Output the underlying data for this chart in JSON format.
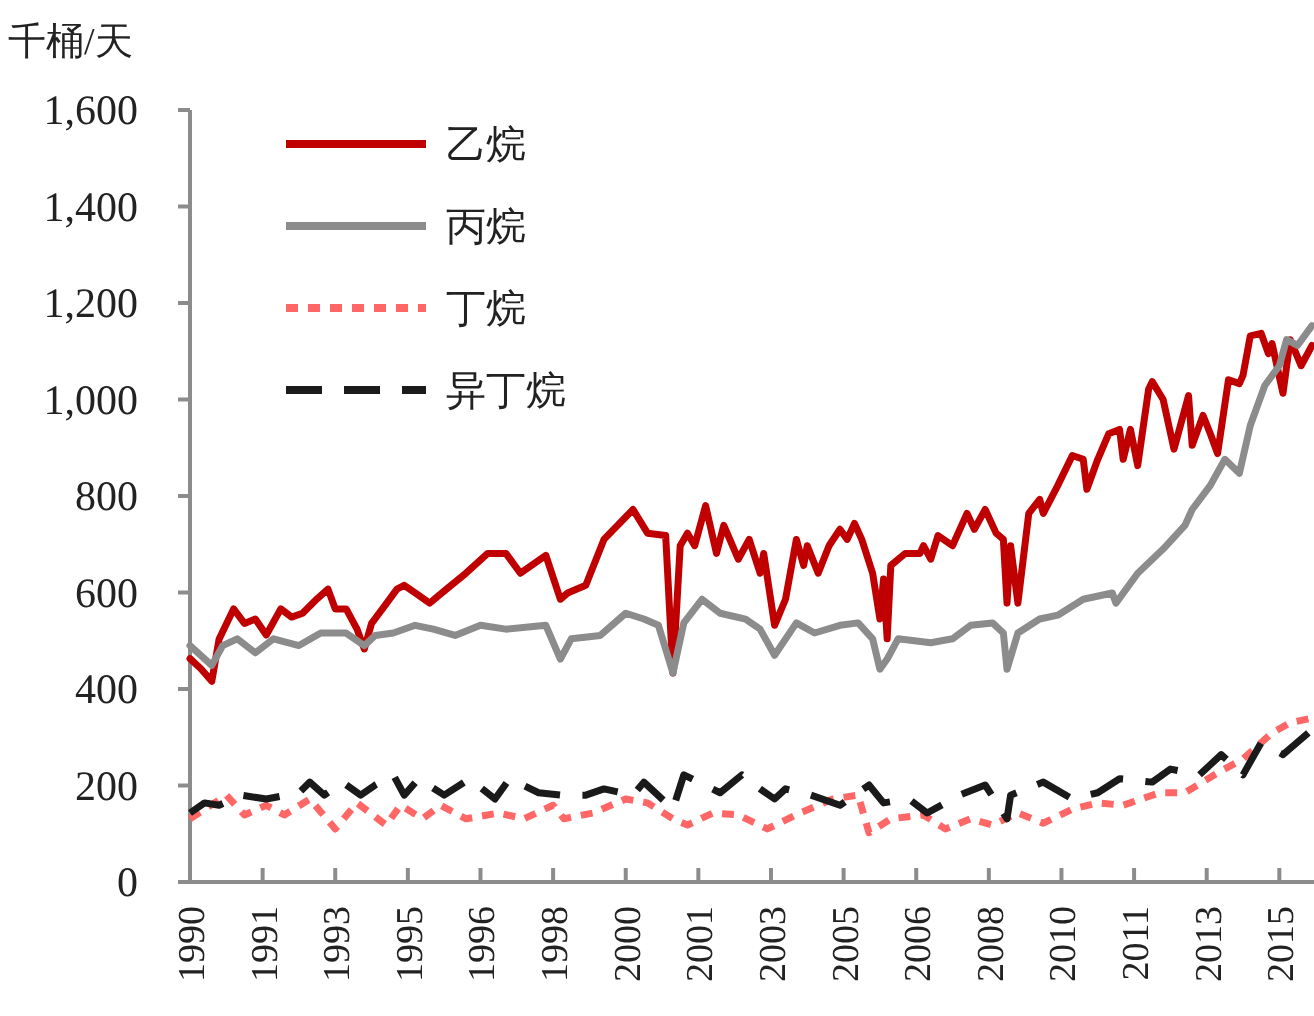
{
  "chart_data": {
    "type": "line",
    "ylabel": "千桶/天",
    "xlim": [
      "1990-01",
      "2015-10"
    ],
    "ylim": [
      0,
      1600
    ],
    "xticks": [
      {
        "value": "1990-01",
        "label": "1990"
      },
      {
        "value": "1991-09",
        "label": "1991"
      },
      {
        "value": "1993-05",
        "label": "1993"
      },
      {
        "value": "1995-01",
        "label": "1995"
      },
      {
        "value": "1996-09",
        "label": "1996"
      },
      {
        "value": "1998-05",
        "label": "1998"
      },
      {
        "value": "2000-01",
        "label": "2000"
      },
      {
        "value": "2001-09",
        "label": "2001"
      },
      {
        "value": "2003-05",
        "label": "2003"
      },
      {
        "value": "2005-01",
        "label": "2005"
      },
      {
        "value": "2006-09",
        "label": "2006"
      },
      {
        "value": "2008-05",
        "label": "2008"
      },
      {
        "value": "2010-01",
        "label": "2010"
      },
      {
        "value": "2011-09",
        "label": "2011"
      },
      {
        "value": "2013-05",
        "label": "2013"
      },
      {
        "value": "2015-01",
        "label": "2015"
      }
    ],
    "yticks": [
      {
        "value": 0,
        "label": "0"
      },
      {
        "value": 200,
        "label": "200"
      },
      {
        "value": 400,
        "label": "400"
      },
      {
        "value": 600,
        "label": "600"
      },
      {
        "value": 800,
        "label": "800"
      },
      {
        "value": 1000,
        "label": "1,000"
      },
      {
        "value": 1200,
        "label": "1,200"
      },
      {
        "value": 1400,
        "label": "1,400"
      },
      {
        "value": 1600,
        "label": "1,600"
      }
    ],
    "grid": false,
    "legend": "top left",
    "series": [
      {
        "name": "乙烷",
        "color": "#c00000",
        "line_style": "solid",
        "x": [
          "1990-01",
          "1990-04",
          "1990-07",
          "1990-09",
          "1991-01",
          "1991-04",
          "1991-07",
          "1991-10",
          "1992-02",
          "1992-05",
          "1992-08",
          "1992-12",
          "1993-03",
          "1993-05",
          "1993-08",
          "1993-11",
          "1994-01",
          "1994-03",
          "1994-06",
          "1994-10",
          "1994-12",
          "1995-04",
          "1995-07",
          "1995-11",
          "1996-05",
          "1996-11",
          "1997-04",
          "1997-08",
          "1998-03",
          "1998-07",
          "1998-09",
          "1999-02",
          "1999-07",
          "2000-03",
          "2000-07",
          "2000-12",
          "2001-02",
          "2001-04",
          "2001-06",
          "2001-08",
          "2001-11",
          "2002-02",
          "2002-04",
          "2002-08",
          "2002-11",
          "2003-02",
          "2003-03",
          "2003-06",
          "2003-09",
          "2003-12",
          "2004-02",
          "2004-03",
          "2004-06",
          "2004-09",
          "2004-12",
          "2005-02",
          "2005-04",
          "2005-06",
          "2005-09",
          "2005-11",
          "2005-12",
          "2006-01",
          "2006-02",
          "2006-06",
          "2006-10",
          "2006-11",
          "2007-01",
          "2007-03",
          "2007-07",
          "2007-11",
          "2008-01",
          "2008-04",
          "2008-07",
          "2008-09",
          "2008-10",
          "2008-11",
          "2009-01",
          "2009-04",
          "2009-07",
          "2009-08",
          "2009-12",
          "2010-04",
          "2010-07",
          "2010-08",
          "2010-11",
          "2011-02",
          "2011-05",
          "2011-06",
          "2011-08",
          "2011-10",
          "2012-01",
          "2012-02",
          "2012-05",
          "2012-08",
          "2012-12",
          "2013-01",
          "2013-04",
          "2013-06",
          "2013-08",
          "2013-11",
          "2014-02",
          "2014-03",
          "2014-05",
          "2014-08",
          "2014-10",
          "2014-11",
          "2015-02",
          "2015-04",
          "2015-07",
          "2015-10"
        ],
        "values": [
          463,
          442,
          416,
          503,
          566,
          536,
          545,
          512,
          566,
          549,
          557,
          587,
          607,
          566,
          566,
          524,
          483,
          536,
          566,
          607,
          615,
          594,
          578,
          603,
          640,
          681,
          681,
          640,
          677,
          586,
          599,
          615,
          710,
          772,
          723,
          718,
          433,
          697,
          723,
          697,
          780,
          681,
          739,
          669,
          710,
          640,
          681,
          532,
          586,
          710,
          656,
          697,
          640,
          697,
          731,
          710,
          743,
          710,
          640,
          545,
          628,
          504,
          656,
          681,
          681,
          697,
          669,
          718,
          697,
          764,
          731,
          772,
          723,
          710,
          578,
          697,
          578,
          764,
          793,
          764,
          822,
          884,
          876,
          814,
          876,
          929,
          938,
          876,
          938,
          863,
          1021,
          1037,
          1000,
          897,
          1008,
          905,
          967,
          929,
          888,
          1041,
          1033,
          1050,
          1132,
          1137,
          1095,
          1116,
          1013,
          1124,
          1070,
          1112
        ]
      },
      {
        "name": "丙烷",
        "color": "#8c8c8c",
        "line_style": "solid",
        "x": [
          "1990-01",
          "1990-07",
          "1990-10",
          "1991-02",
          "1991-07",
          "1991-12",
          "1992-07",
          "1993-01",
          "1993-08",
          "1994-01",
          "1994-04",
          "1994-09",
          "1995-03",
          "1995-08",
          "1996-02",
          "1996-09",
          "1997-04",
          "1998-03",
          "1998-07",
          "1998-10",
          "1999-06",
          "2000-01",
          "2000-06",
          "2000-10",
          "2001-02",
          "2001-05",
          "2001-10",
          "2002-03",
          "2002-10",
          "2003-02",
          "2003-06",
          "2003-12",
          "2004-05",
          "2004-12",
          "2005-05",
          "2005-09",
          "2005-11",
          "2006-01",
          "2006-04",
          "2007-01",
          "2007-07",
          "2007-12",
          "2008-06",
          "2008-09",
          "2008-10",
          "2009-01",
          "2009-07",
          "2009-12",
          "2010-07",
          "2011-03",
          "2011-04",
          "2011-10",
          "2012-05",
          "2012-11",
          "2013-01",
          "2013-06",
          "2013-10",
          "2014-02",
          "2014-05",
          "2014-09",
          "2015-01",
          "2015-03",
          "2015-06",
          "2015-10"
        ],
        "values": [
          490,
          449,
          490,
          504,
          475,
          504,
          490,
          516,
          516,
          490,
          511,
          516,
          532,
          524,
          511,
          532,
          524,
          532,
          462,
          504,
          511,
          557,
          545,
          532,
          433,
          537,
          586,
          557,
          545,
          524,
          470,
          537,
          516,
          532,
          537,
          504,
          441,
          462,
          504,
          496,
          504,
          532,
          537,
          516,
          441,
          516,
          545,
          553,
          586,
          599,
          578,
          640,
          690,
          739,
          772,
          822,
          876,
          847,
          946,
          1029,
          1070,
          1124,
          1112,
          1153
        ]
      },
      {
        "name": "丁烷",
        "color": "#ff6666",
        "line_style": "dotted",
        "x": [
          "1990-01",
          "1990-11",
          "1991-04",
          "1991-10",
          "1992-03",
          "1992-10",
          "1993-05",
          "1993-11",
          "1994-07",
          "1994-11",
          "1995-05",
          "1995-10",
          "1996-05",
          "1997-02",
          "1997-09",
          "1998-05",
          "1998-08",
          "1999-04",
          "2000-01",
          "2000-07",
          "2001-02",
          "2001-06",
          "2002-01",
          "2002-08",
          "2003-04",
          "2004-01",
          "2004-10",
          "2005-05",
          "2005-08",
          "2006-02",
          "2006-11",
          "2007-05",
          "2007-12",
          "2008-06",
          "2009-01",
          "2009-08",
          "2010-04",
          "2010-11",
          "2011-06",
          "2012-04",
          "2012-11",
          "2013-08",
          "2014-03",
          "2014-11",
          "2015-04",
          "2015-09"
        ],
        "values": [
          131,
          180,
          139,
          159,
          139,
          172,
          110,
          164,
          118,
          159,
          131,
          159,
          131,
          143,
          131,
          159,
          131,
          143,
          172,
          164,
          131,
          118,
          143,
          139,
          110,
          143,
          172,
          180,
          102,
          131,
          139,
          110,
          131,
          118,
          143,
          122,
          151,
          164,
          159,
          185,
          185,
          226,
          255,
          309,
          330,
          338
        ]
      },
      {
        "name": "异丁烷",
        "color": "#1a1a1a",
        "line_style": "dashed",
        "x": [
          "1990-01",
          "1990-05",
          "1990-09",
          "1991-03",
          "1991-10",
          "1992-07",
          "1992-10",
          "1993-02",
          "1993-07",
          "1993-12",
          "1994-04",
          "1994-09",
          "1994-12",
          "1995-04",
          "1995-11",
          "1996-06",
          "1997-01",
          "1997-05",
          "1998-01",
          "1998-07",
          "1999-02",
          "1999-07",
          "2000-03",
          "2000-06",
          "2001-02",
          "2001-05",
          "2002-03",
          "2002-09",
          "2003-02",
          "2003-06",
          "2003-09",
          "2004-04",
          "2004-12",
          "2005-08",
          "2005-12",
          "2006-07",
          "2006-12",
          "2007-09",
          "2008-04",
          "2008-10",
          "2008-11",
          "2009-08",
          "2010-04",
          "2010-11",
          "2011-05",
          "2012-02",
          "2012-07",
          "2013-03",
          "2013-09",
          "2014-03",
          "2014-08",
          "2015-02",
          "2015-09"
        ],
        "values": [
          143,
          164,
          159,
          180,
          172,
          185,
          207,
          180,
          207,
          180,
          201,
          222,
          180,
          214,
          180,
          214,
          172,
          214,
          185,
          180,
          180,
          193,
          180,
          207,
          151,
          222,
          185,
          222,
          193,
          172,
          193,
          180,
          159,
          201,
          164,
          172,
          143,
          180,
          201,
          131,
          180,
          207,
          172,
          185,
          214,
          207,
          234,
          222,
          264,
          222,
          289,
          264,
          309
        ]
      }
    ]
  }
}
